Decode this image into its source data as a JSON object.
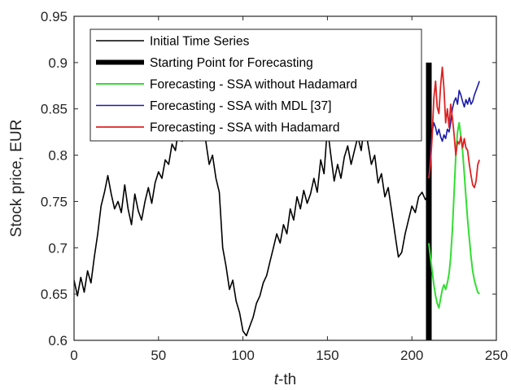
{
  "chart_data": {
    "type": "line",
    "xlabel_italic": "t",
    "xlabel_rest": "-th",
    "ylabel": "Stock price, EUR",
    "xlim": [
      0,
      250
    ],
    "ylim": [
      0.6,
      0.95
    ],
    "x_ticks": [
      "0",
      "50",
      "100",
      "150",
      "200",
      "250"
    ],
    "x_tick_values": [
      0,
      50,
      100,
      150,
      200,
      250
    ],
    "y_ticks": [
      "0.6",
      "0.65",
      "0.7",
      "0.75",
      "0.8",
      "0.85",
      "0.9",
      "0.95"
    ],
    "y_tick_values": [
      0.6,
      0.65,
      0.7,
      0.75,
      0.8,
      0.85,
      0.9,
      0.95
    ],
    "grid": false,
    "legend_position": "top-left",
    "series": [
      {
        "name": "Initial Time Series",
        "color": "#000000",
        "x": [
          0,
          2,
          4,
          6,
          8,
          10,
          12,
          14,
          16,
          18,
          20,
          22,
          24,
          26,
          28,
          30,
          32,
          34,
          36,
          38,
          40,
          42,
          44,
          46,
          48,
          50,
          52,
          54,
          56,
          58,
          60,
          62,
          64,
          66,
          68,
          70,
          72,
          74,
          76,
          78,
          80,
          82,
          84,
          86,
          88,
          90,
          92,
          94,
          96,
          98,
          100,
          102,
          104,
          106,
          108,
          110,
          112,
          114,
          116,
          118,
          120,
          122,
          124,
          126,
          128,
          130,
          132,
          134,
          136,
          138,
          140,
          142,
          144,
          146,
          148,
          150,
          152,
          154,
          156,
          158,
          160,
          162,
          164,
          166,
          168,
          170,
          172,
          174,
          176,
          178,
          180,
          182,
          184,
          186,
          188,
          190,
          192,
          194,
          196,
          198,
          200,
          202,
          204,
          206,
          208,
          210
        ],
        "values": [
          0.665,
          0.648,
          0.668,
          0.652,
          0.675,
          0.662,
          0.69,
          0.715,
          0.745,
          0.76,
          0.778,
          0.758,
          0.742,
          0.75,
          0.738,
          0.768,
          0.742,
          0.725,
          0.758,
          0.74,
          0.73,
          0.75,
          0.765,
          0.748,
          0.77,
          0.782,
          0.775,
          0.795,
          0.79,
          0.812,
          0.805,
          0.83,
          0.815,
          0.838,
          0.822,
          0.845,
          0.83,
          0.82,
          0.838,
          0.815,
          0.79,
          0.8,
          0.775,
          0.76,
          0.7,
          0.68,
          0.655,
          0.665,
          0.642,
          0.63,
          0.61,
          0.605,
          0.615,
          0.625,
          0.64,
          0.648,
          0.662,
          0.67,
          0.685,
          0.7,
          0.715,
          0.705,
          0.725,
          0.715,
          0.742,
          0.73,
          0.755,
          0.742,
          0.762,
          0.748,
          0.758,
          0.775,
          0.76,
          0.795,
          0.78,
          0.83,
          0.8,
          0.772,
          0.79,
          0.775,
          0.798,
          0.81,
          0.79,
          0.805,
          0.82,
          0.805,
          0.835,
          0.812,
          0.79,
          0.8,
          0.77,
          0.78,
          0.755,
          0.765,
          0.74,
          0.715,
          0.69,
          0.695,
          0.715,
          0.73,
          0.745,
          0.738,
          0.755,
          0.76,
          0.752,
          0.758
        ]
      },
      {
        "name": "Starting Point for Forecasting",
        "color": "#000000",
        "x": [
          210,
          210
        ],
        "values": [
          0.6,
          0.9
        ]
      },
      {
        "name": "Forecasting - SSA without Hadamard",
        "color": "#33dd33",
        "x": [
          210,
          211,
          212,
          213,
          214,
          215,
          216,
          217,
          218,
          219,
          220,
          221,
          222,
          223,
          224,
          225,
          226,
          227,
          228,
          229,
          230,
          231,
          232,
          233,
          234,
          235,
          236,
          237,
          238,
          239,
          240
        ],
        "values": [
          0.705,
          0.69,
          0.675,
          0.66,
          0.648,
          0.64,
          0.635,
          0.645,
          0.655,
          0.66,
          0.655,
          0.662,
          0.672,
          0.69,
          0.72,
          0.76,
          0.8,
          0.825,
          0.835,
          0.82,
          0.805,
          0.78,
          0.755,
          0.73,
          0.71,
          0.69,
          0.675,
          0.665,
          0.658,
          0.652,
          0.65
        ]
      },
      {
        "name": "Forecasting - SSA with MDL [37]",
        "color": "#1a1aaa",
        "x": [
          210,
          211,
          212,
          213,
          214,
          215,
          216,
          217,
          218,
          219,
          220,
          221,
          222,
          223,
          224,
          225,
          226,
          227,
          228,
          229,
          230,
          231,
          232,
          233,
          234,
          235,
          236,
          237,
          238,
          239,
          240
        ],
        "values": [
          0.775,
          0.8,
          0.825,
          0.835,
          0.83,
          0.822,
          0.828,
          0.82,
          0.815,
          0.822,
          0.818,
          0.828,
          0.825,
          0.835,
          0.85,
          0.858,
          0.862,
          0.855,
          0.87,
          0.865,
          0.858,
          0.852,
          0.86,
          0.855,
          0.862,
          0.855,
          0.858,
          0.865,
          0.87,
          0.875,
          0.88
        ]
      },
      {
        "name": "Forecasting - SSA with Hadamard",
        "color": "#dd2222",
        "x": [
          210,
          211,
          212,
          213,
          214,
          215,
          216,
          217,
          218,
          219,
          220,
          221,
          222,
          223,
          224,
          225,
          226,
          227,
          228,
          229,
          230,
          231,
          232,
          233,
          234,
          235,
          236,
          237,
          238,
          239,
          240
        ],
        "values": [
          0.775,
          0.79,
          0.82,
          0.862,
          0.88,
          0.852,
          0.845,
          0.875,
          0.895,
          0.872,
          0.835,
          0.85,
          0.83,
          0.855,
          0.84,
          0.822,
          0.8,
          0.815,
          0.812,
          0.82,
          0.808,
          0.818,
          0.808,
          0.805,
          0.79,
          0.778,
          0.768,
          0.765,
          0.772,
          0.79,
          0.795
        ]
      }
    ]
  }
}
